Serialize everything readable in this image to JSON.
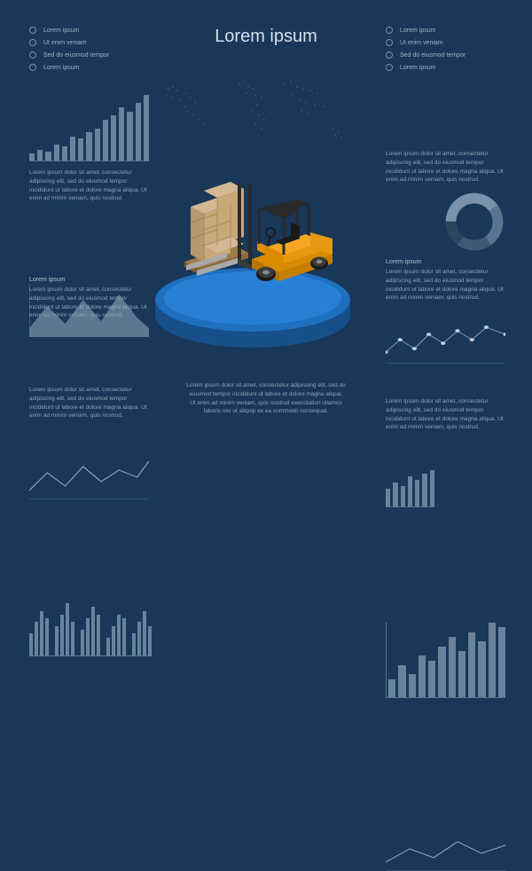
{
  "background_color": "#183759",
  "title": "Lorem ipsum",
  "lorem_short": "Lorem ipsum",
  "lorem_line": "Ut enim veniam",
  "lorem_line2": "Sed do eiusmod tempor",
  "lorem_block": "Lorem ipsum dolor sit amet, consectetur adipiscing elit, sed do eiusmod tempor incididunt ut labore et dolore magna aliqua. Ut enim ad minim veniam, quis nostrud.",
  "lorem_block_long": "Lorem ipsum dolor sit amet, consectetur adipiscing elit, sed do eiusmod tempor incididunt ut labore et dolore magna aliqua. Ut enim ad minim veniam, quis nostrud exercitation ullamco laboris nisi ut aliquip ex ea commodo consequat.",
  "colors": {
    "bar": "#6a839d",
    "bar_alt": "#4a6580",
    "text": "#8fa3b8",
    "axis": "#5a7490",
    "platform_top": "#1f6fbf",
    "platform_side": "#174f8a",
    "forklift_body": "#f5a623",
    "forklift_dark": "#2a2a2a",
    "box": "#c9a878"
  },
  "top_left_bullets": [
    "Lorem ipsum",
    "Ut enim veniam",
    "Sed do eiusmod tempor",
    "Lorem ipsum"
  ],
  "top_right_bullets": [
    "Lorem ipsum",
    "Ut enim veniam",
    "Sed do eiusmod tempor",
    "Lorem ipsum"
  ],
  "charts": {
    "bar_left_top": {
      "type": "bar",
      "values": [
        10,
        14,
        12,
        20,
        18,
        30,
        28,
        35,
        40,
        50,
        55,
        65,
        60,
        70,
        80
      ]
    },
    "area_left_mid": {
      "type": "area",
      "points": [
        [
          0,
          60
        ],
        [
          15,
          30
        ],
        [
          30,
          55
        ],
        [
          45,
          20
        ],
        [
          60,
          50
        ],
        [
          75,
          15
        ],
        [
          90,
          45
        ],
        [
          100,
          60
        ]
      ]
    },
    "line_left_lower": {
      "type": "line",
      "points": [
        [
          0,
          50
        ],
        [
          15,
          30
        ],
        [
          30,
          45
        ],
        [
          45,
          20
        ],
        [
          60,
          40
        ],
        [
          75,
          25
        ],
        [
          90,
          35
        ],
        [
          100,
          15
        ]
      ]
    },
    "eq_left_bottom": {
      "type": "bar_grouped",
      "groups": [
        [
          30,
          45,
          60,
          50
        ],
        [
          40,
          55,
          70,
          45
        ],
        [
          35,
          50,
          65,
          55
        ],
        [
          25,
          40,
          55,
          50
        ],
        [
          30,
          45,
          60,
          40
        ]
      ]
    },
    "line_right_top": {
      "type": "line_markers",
      "points": [
        [
          0,
          45
        ],
        [
          12,
          30
        ],
        [
          24,
          40
        ],
        [
          36,
          25
        ],
        [
          48,
          35
        ],
        [
          60,
          20
        ],
        [
          72,
          30
        ],
        [
          84,
          15
        ],
        [
          100,
          25
        ]
      ]
    },
    "bar_right_mini": {
      "type": "bar",
      "values": [
        30,
        40,
        35,
        50,
        45,
        55,
        60
      ]
    },
    "donut_right": {
      "type": "donut",
      "slices": [
        40,
        25,
        20,
        15
      ],
      "colors": [
        "#7a92ab",
        "#5a7490",
        "#3f5a75",
        "#2a4560"
      ]
    },
    "bar_right_big": {
      "type": "bar",
      "values": [
        20,
        35,
        25,
        45,
        40,
        55,
        65,
        50,
        70,
        60,
        80,
        75
      ]
    },
    "line_bottom_right": {
      "type": "line",
      "points": [
        [
          0,
          40
        ],
        [
          20,
          25
        ],
        [
          40,
          35
        ],
        [
          60,
          15
        ],
        [
          80,
          30
        ],
        [
          100,
          20
        ]
      ]
    }
  }
}
